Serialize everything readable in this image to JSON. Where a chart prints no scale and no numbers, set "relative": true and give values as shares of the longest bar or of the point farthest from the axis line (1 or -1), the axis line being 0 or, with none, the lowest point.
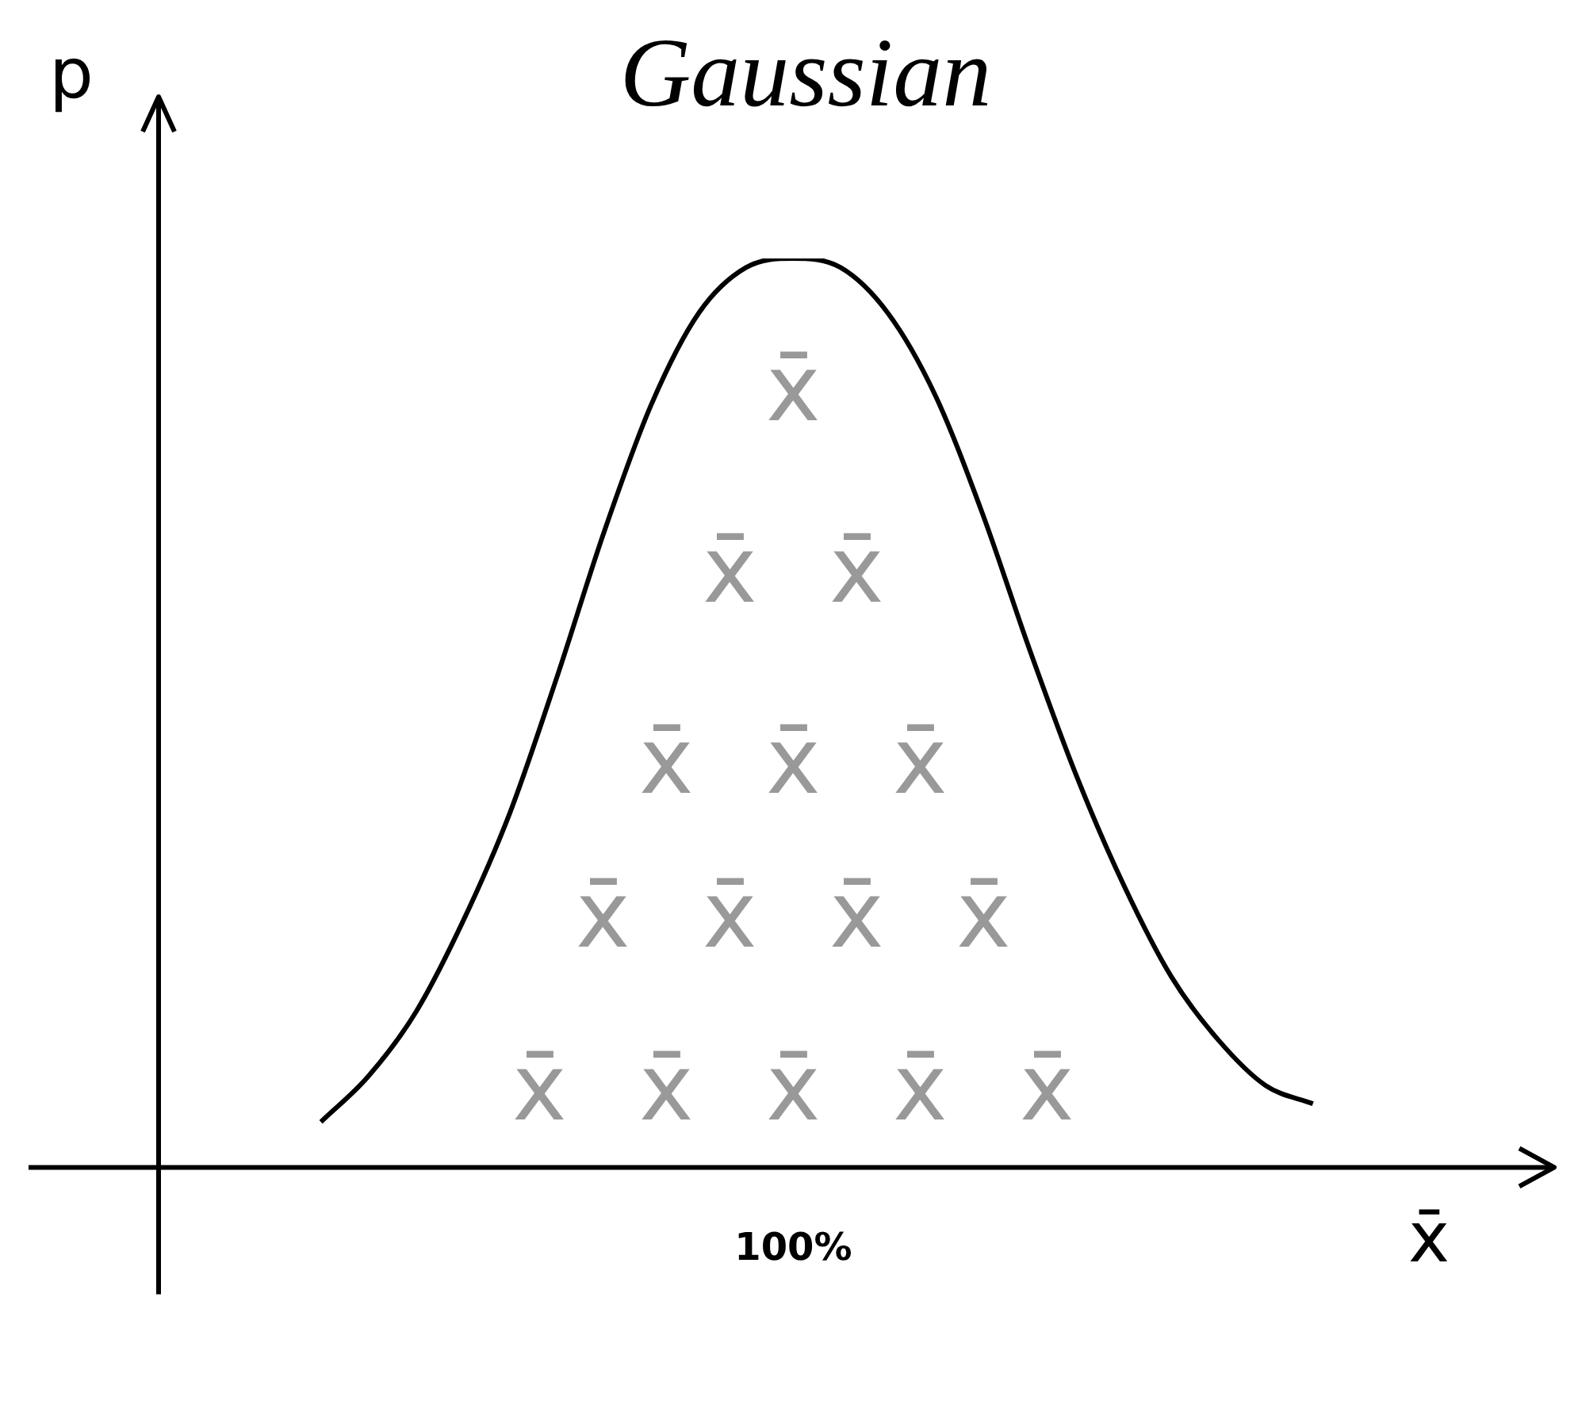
{
  "chart_data": {
    "type": "line",
    "title": "Gaussian",
    "xlabel": "x̄",
    "ylabel": "p",
    "relative": true,
    "marker": "none",
    "legend": false,
    "grid": false,
    "categories": [
      null,
      null,
      null,
      null,
      null,
      null,
      null,
      null,
      null,
      null,
      null,
      null,
      null,
      null,
      null,
      null,
      null,
      null,
      null,
      null,
      null,
      null,
      null,
      null,
      null,
      null,
      null,
      null,
      null
    ],
    "series": [
      {
        "color": "#000000",
        "values": [
          null,
          null,
          null,
          0.05,
          0.1,
          0.17,
          0.27,
          0.39,
          0.54,
          0.7,
          0.84,
          0.94,
          0.99,
          1,
          0.99,
          0.94,
          0.85,
          0.72,
          0.57,
          0.43,
          0.31,
          0.21,
          0.14,
          0.09,
          0.07,
          null,
          null,
          null,
          null
        ]
      }
    ],
    "annotations": [
      "100%",
      "x̄",
      "x̄",
      "x̄",
      "x̄",
      "x̄",
      "x̄",
      "x̄",
      "x̄",
      "x̄",
      "x̄",
      "x̄",
      "x̄",
      "x̄",
      "x̄",
      "x̄"
    ]
  }
}
